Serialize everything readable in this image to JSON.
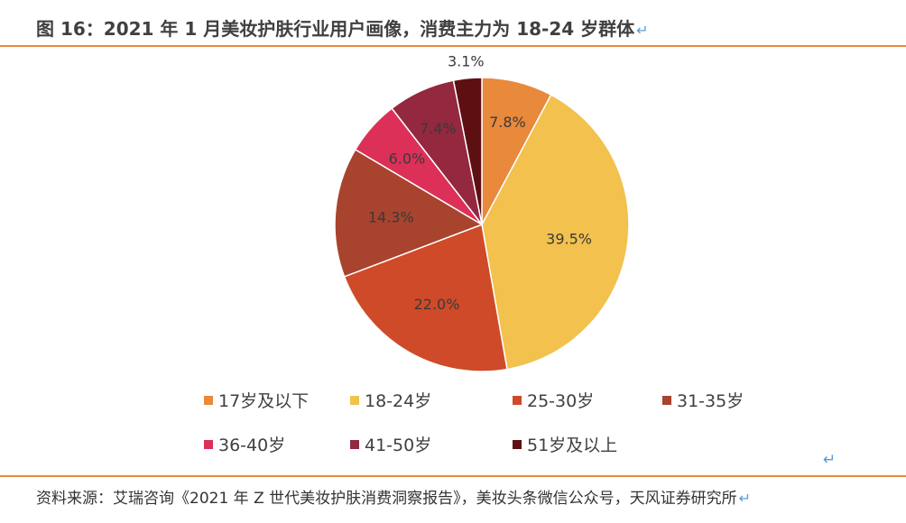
{
  "title": "图 16：2021 年 1 月美妆护肤行业用户画像，消费主力为 18-24 岁群体",
  "source": "资料来源：艾瑞咨询《2021 年 Z 世代美妆护肤消费洞察报告》，美妆头条微信公众号，天风证券研究所",
  "paragraph_mark": "↵",
  "chart_data": {
    "type": "pie",
    "title": "",
    "categories": [
      "17岁及以下",
      "18-24岁",
      "25-30岁",
      "31-35岁",
      "36-40岁",
      "41-50岁",
      "51岁及以上"
    ],
    "values": [
      7.8,
      39.5,
      22.0,
      14.3,
      6.0,
      7.4,
      3.1
    ],
    "value_labels": [
      "7.8%",
      "39.5%",
      "22.0%",
      "14.3%",
      "6.0%",
      "7.4%",
      "3.1%"
    ],
    "colors": [
      "#e8893b",
      "#f2c14e",
      "#cf4a28",
      "#a8432e",
      "#dc3058",
      "#93283e",
      "#5e0f12"
    ],
    "start": "12 o'clock, clockwise",
    "legend_position": "bottom"
  }
}
